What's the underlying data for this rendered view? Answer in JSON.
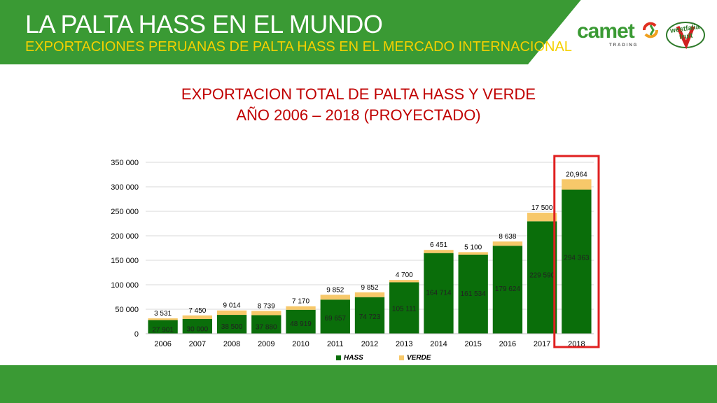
{
  "header": {
    "title": "LA PALTA HASS EN EL MUNDO",
    "subtitle": "EXPORTACIONES PERUANAS DE PALTA HASS EN EL MERCADO INTERNACIONAL"
  },
  "logos": {
    "camet": "camet",
    "camet_tag": "TRADING",
    "westfalia": "westfalia fruit"
  },
  "colors": {
    "header_green": "#3a9a34",
    "subtitle_yellow": "#f5d000",
    "title_red": "#c00000",
    "hass": "#0a6e0a",
    "verde": "#f7c86a",
    "highlight": "#e02020"
  },
  "chart_data": {
    "type": "bar",
    "stacked": true,
    "title_line1": "EXPORTACION TOTAL DE PALTA HASS Y VERDE",
    "title_line2": "AÑO 2006 – 2018 (PROYECTADO)",
    "categories": [
      "2006",
      "2007",
      "2008",
      "2009",
      "2010",
      "2011",
      "2012",
      "2013",
      "2014",
      "2015",
      "2016",
      "2017",
      "2018"
    ],
    "series": [
      {
        "name": "HASS",
        "color": "#0a6e0a",
        "values": [
          27901,
          30000,
          38500,
          37880,
          48919,
          69657,
          74723,
          105111,
          164714,
          161534,
          179624,
          229590,
          294363
        ],
        "labels": [
          "27 901",
          "30 000",
          "38 500",
          "37 880",
          "48 919",
          "69 657",
          "74 723",
          "105 111",
          "164 714",
          "161 534",
          "179 624",
          "229 590",
          "294 363"
        ]
      },
      {
        "name": "VERDE",
        "color": "#f7c86a",
        "values": [
          3531,
          7450,
          9014,
          8739,
          7170,
          9852,
          9852,
          4700,
          6451,
          5100,
          8638,
          17500,
          20964
        ],
        "labels": [
          "3 531",
          "7 450",
          "9 014",
          "8 739",
          "7 170",
          "9 852",
          "9 852",
          "4 700",
          "6 451",
          "5 100",
          "8 638",
          "17 500",
          "20,964"
        ]
      }
    ],
    "ylim": [
      0,
      350000
    ],
    "yticks": [
      0,
      50000,
      100000,
      150000,
      200000,
      250000,
      300000,
      350000
    ],
    "ytick_labels": [
      "0",
      "50 000",
      "100 000",
      "150 000",
      "200 000",
      "250 000",
      "300 000",
      "350 000"
    ],
    "grid": true,
    "legend_position": "bottom",
    "highlighted_category": "2018"
  }
}
